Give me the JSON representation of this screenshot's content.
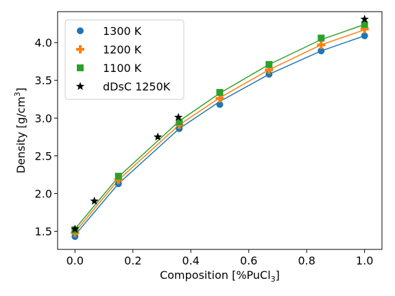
{
  "chart_data": {
    "type": "scatter",
    "xlabel": "Composition [%PuCl",
    "xlabel_sub": "3",
    "xlabel_end": "]",
    "ylabel": "Density [g/cm",
    "ylabel_sup": "3",
    "ylabel_end": "]",
    "xlim": [
      -0.06,
      1.06
    ],
    "ylim": [
      1.26,
      4.41
    ],
    "xticks": [
      0.0,
      0.2,
      0.4,
      0.6,
      0.8,
      1.0
    ],
    "xtick_labels": [
      "0.0",
      "0.2",
      "0.4",
      "0.6",
      "0.8",
      "1.0"
    ],
    "yticks": [
      1.5,
      2.0,
      2.5,
      3.0,
      3.5,
      4.0
    ],
    "ytick_labels": [
      "1.5",
      "2.0",
      "2.5",
      "3.0",
      "3.5",
      "4.0"
    ],
    "grid": false,
    "legend_position": "top-left",
    "series": [
      {
        "name": "1300 K",
        "marker": "circle",
        "color": "#1f77b4",
        "x": [
          0.0,
          0.15,
          0.36,
          0.5,
          0.67,
          0.85,
          1.0
        ],
        "y": [
          1.43,
          2.13,
          2.86,
          3.18,
          3.58,
          3.89,
          4.09
        ],
        "fit": [
          1.45,
          2.13,
          2.86,
          3.22,
          3.58,
          3.89,
          4.09
        ]
      },
      {
        "name": "1200 K",
        "marker": "plus",
        "color": "#ff7f0e",
        "x": [
          0.0,
          0.15,
          0.36,
          0.5,
          0.67,
          0.85,
          1.0
        ],
        "y": [
          1.48,
          2.18,
          2.91,
          3.26,
          3.64,
          3.97,
          4.18
        ],
        "fit": [
          1.49,
          2.18,
          2.91,
          3.27,
          3.64,
          3.97,
          4.17
        ]
      },
      {
        "name": "1100 K",
        "marker": "square",
        "color": "#2ca02c",
        "x": [
          0.0,
          0.15,
          0.36,
          0.5,
          0.67,
          0.85,
          1.0
        ],
        "y": [
          1.52,
          2.23,
          2.95,
          3.34,
          3.71,
          4.06,
          4.24
        ],
        "fit": [
          1.53,
          2.22,
          2.96,
          3.33,
          3.71,
          4.04,
          4.24
        ]
      },
      {
        "name": "dDsC 1250K",
        "marker": "star",
        "color": "#000000",
        "x": [
          0.0,
          0.067,
          0.286,
          0.357,
          1.0
        ],
        "y": [
          1.53,
          1.9,
          2.75,
          3.01,
          4.31
        ]
      }
    ]
  }
}
